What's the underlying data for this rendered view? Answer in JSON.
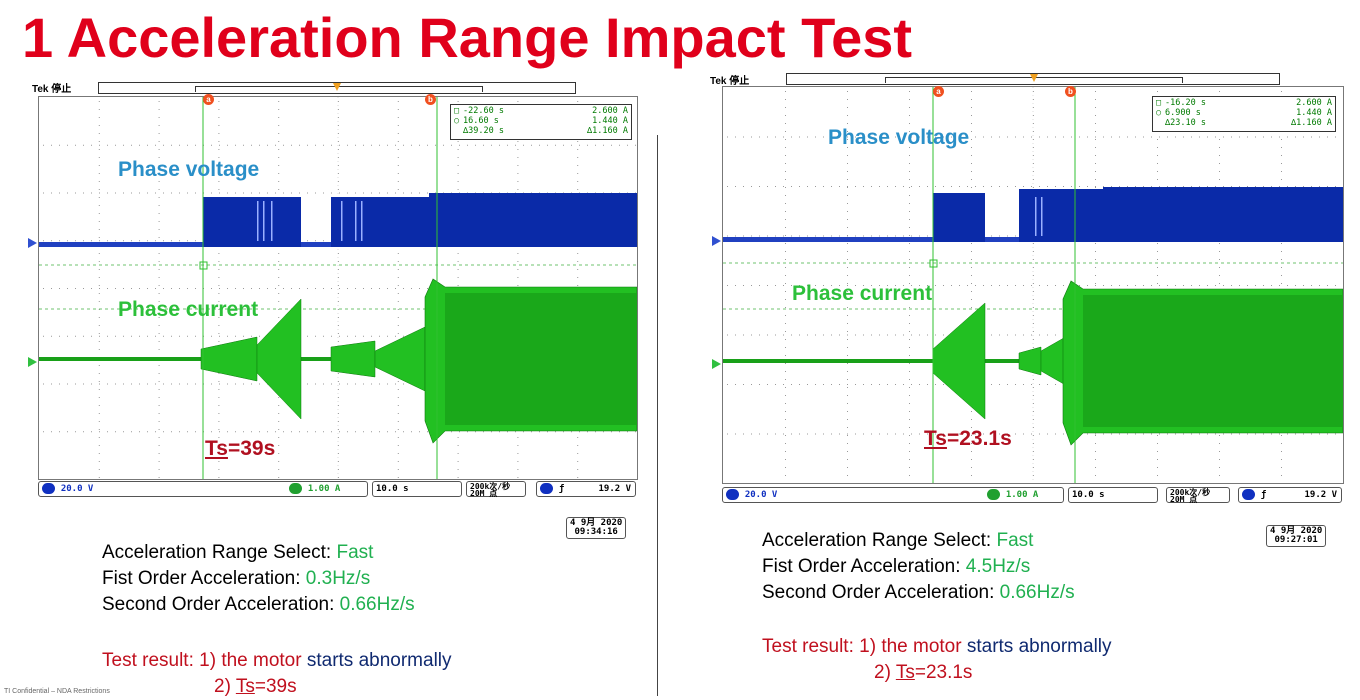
{
  "title": "1 Acceleration Range Impact Test",
  "scopes": [
    {
      "tek": "Tek 停止",
      "cursor_a": "a",
      "cursor_b": "b",
      "readout": {
        "a_time": "-22.60 s",
        "a_val": "2.600 A",
        "b_time": "16.60 s",
        "b_val": "1.440 A",
        "d_time": "∆39.20 s",
        "d_val": "∆1.160 A"
      },
      "phase_voltage": "Phase voltage",
      "phase_current": "Phase current",
      "ts_label": "Ts",
      "ts_value": "=39s",
      "status": {
        "ch1": "1",
        "ch1_scale": "20.0 V",
        "ch4": "4",
        "ch4_scale": "1.00 A",
        "timebase": "10.0 s",
        "rate1": "200k次/秒",
        "rate2": "20M 点",
        "trig_ch": "1",
        "trig_slope": "ƒ",
        "trig_level": "19.2 V"
      },
      "date1": "4 9月 2020",
      "date2": "09:34:16"
    },
    {
      "tek": "Tek 停止",
      "cursor_a": "a",
      "cursor_b": "b",
      "readout": {
        "a_time": "-16.20 s",
        "a_val": "2.600 A",
        "b_time": "6.900 s",
        "b_val": "1.440 A",
        "d_time": "∆23.10 s",
        "d_val": "∆1.160 A"
      },
      "phase_voltage": "Phase voltage",
      "phase_current": "Phase current",
      "ts_label": "Ts",
      "ts_value": "=23.1s",
      "status": {
        "ch1": "1",
        "ch1_scale": "20.0 V",
        "ch4": "4",
        "ch4_scale": "1.00 A",
        "timebase": "10.0 s",
        "rate1": "200k次/秒",
        "rate2": "20M 点",
        "trig_ch": "1",
        "trig_slope": "ƒ",
        "trig_level": "19.2 V"
      },
      "date1": "4 9月 2020",
      "date2": "09:27:01"
    }
  ],
  "left_info": {
    "l1_label": "Acceleration Range Select: ",
    "l1_value": "Fast",
    "l2_label": "Fist Order Acceleration: ",
    "l2_value": "0.3Hz/s",
    "l3_label": "Second Order Acceleration: ",
    "l3_value": "0.66Hz/s",
    "r_prefix": "Test result: 1) the motor ",
    "r_mid": "starts abnormally",
    "r2_prefix": "2) ",
    "r2_u": "Ts",
    "r2_rest": "=39s"
  },
  "right_info": {
    "l1_label": "Acceleration Range Select: ",
    "l1_value": "Fast",
    "l2_label": "Fist Order Acceleration: ",
    "l2_value": "4.5Hz/s",
    "l3_label": "Second Order Acceleration: ",
    "l3_value": "0.66Hz/s",
    "r_prefix": "Test result: 1) the motor ",
    "r_mid": "starts abnormally",
    "r2_prefix": "2) ",
    "r2_u": "Ts",
    "r2_rest": "=23.1s"
  },
  "footer": "TI Confidential – NDA Restrictions",
  "colors": {
    "title": "#e0001b",
    "voltage_trace": "#1030c0",
    "current_trace": "#20c030",
    "cursor": "#20c030",
    "ts": "#b01020"
  }
}
